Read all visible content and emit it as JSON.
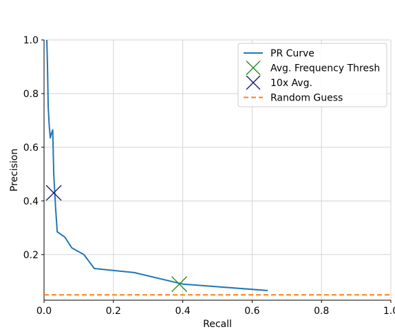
{
  "chart_data": {
    "type": "line",
    "xlabel": "Recall",
    "ylabel": "Precision",
    "xlim": [
      0.0,
      1.0
    ],
    "ylim": [
      0.03,
      1.0
    ],
    "xticks": [
      0.0,
      0.2,
      0.4,
      0.6,
      0.8,
      1.0
    ],
    "xtick_labels": [
      "0.0",
      "0.2",
      "0.4",
      "0.6",
      "0.8",
      "1.0"
    ],
    "yticks": [
      0.2,
      0.4,
      0.6,
      0.8,
      1.0
    ],
    "ytick_labels": [
      "0.2",
      "0.4",
      "0.6",
      "0.8",
      "1.0"
    ],
    "grid": true,
    "legend_position": "top-right",
    "series": [
      {
        "name": "PR Curve",
        "kind": "line",
        "color": "#1f77b4",
        "x": [
          0.008,
          0.01,
          0.012,
          0.015,
          0.018,
          0.021,
          0.025,
          0.028,
          0.033,
          0.038,
          0.06,
          0.08,
          0.115,
          0.145,
          0.26,
          0.4,
          0.645
        ],
        "y": [
          1.0,
          0.9,
          0.75,
          0.68,
          0.635,
          0.65,
          0.665,
          0.5,
          0.38,
          0.285,
          0.265,
          0.225,
          0.2,
          0.148,
          0.133,
          0.09,
          0.066
        ]
      },
      {
        "name": "Avg. Frequency Thresh",
        "kind": "marker",
        "marker": "x",
        "color": "#228b22",
        "x": [
          0.39
        ],
        "y": [
          0.09
        ]
      },
      {
        "name": "10x Avg.",
        "kind": "marker",
        "marker": "x",
        "color": "#191970",
        "x": [
          0.028
        ],
        "y": [
          0.43
        ]
      },
      {
        "name": "Random Guess",
        "kind": "dashed-line",
        "color": "#ff7f0e",
        "x": [
          0.0,
          1.0
        ],
        "y": [
          0.05,
          0.05
        ]
      }
    ]
  }
}
